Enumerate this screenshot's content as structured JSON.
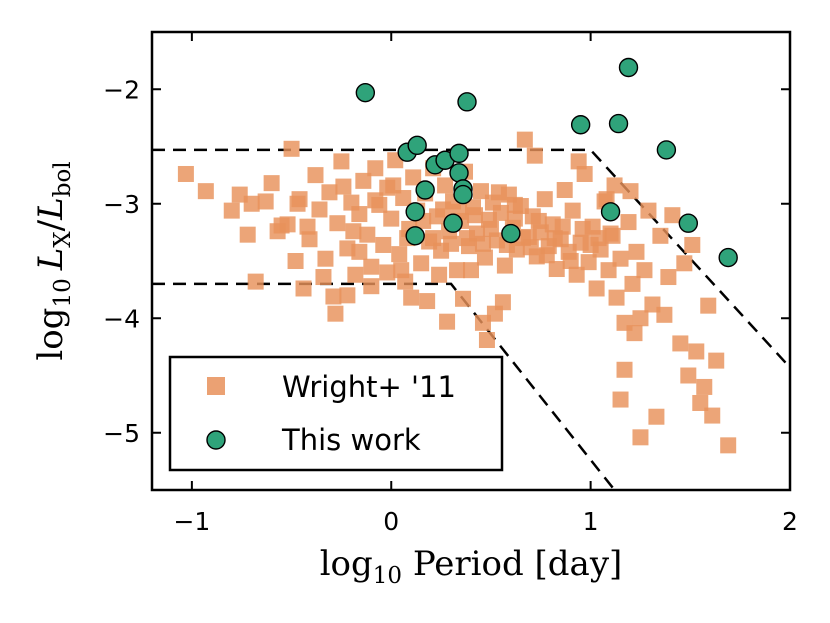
{
  "chart_data": {
    "type": "scatter",
    "xlabel": "log10 Period [day]",
    "ylabel": "log10 LX/Lbol",
    "xlabel_parts": {
      "log": "log",
      "sub": "10",
      "rest": " Period [day]"
    },
    "ylabel_parts": {
      "log": "log",
      "sub": "10",
      "L1": "L",
      "sub1": "X",
      "slash": "/",
      "L2": "L",
      "sub2": "bol"
    },
    "xlim": [
      -1.2,
      2.0
    ],
    "ylim": [
      -5.5,
      -1.5
    ],
    "xticks": [
      -1,
      0,
      1,
      2
    ],
    "xtick_labels": [
      "−1",
      "0",
      "1",
      "2"
    ],
    "yticks": [
      -5,
      -4,
      -3,
      -2
    ],
    "ytick_labels": [
      "−5",
      "−4",
      "−3",
      "−2"
    ],
    "legend": {
      "position": "lower-left",
      "entries": [
        "Wright+ '11",
        "This work"
      ]
    },
    "colors": {
      "wright": "#e8915a",
      "wright_edge": "#e07830",
      "this_work": "#2fa37a",
      "this_work_edge": "#000000",
      "guide": "#000000"
    },
    "guide_lines": [
      {
        "name": "upper-saturation-line",
        "x": [
          -1.2,
          1.0,
          2.0
        ],
        "y": [
          -2.53,
          -2.53,
          -4.43
        ]
      },
      {
        "name": "lower-saturation-line",
        "x": [
          -1.2,
          0.3,
          1.12
        ],
        "y": [
          -3.7,
          -3.7,
          -5.5
        ]
      }
    ],
    "series": [
      {
        "name": "This work",
        "marker": "circle",
        "points": [
          [
            -0.13,
            -2.03
          ],
          [
            0.08,
            -2.55
          ],
          [
            0.13,
            -2.49
          ],
          [
            0.17,
            -2.88
          ],
          [
            0.22,
            -2.66
          ],
          [
            0.27,
            -2.62
          ],
          [
            0.34,
            -2.56
          ],
          [
            0.34,
            -2.73
          ],
          [
            0.36,
            -2.87
          ],
          [
            0.36,
            -2.92
          ],
          [
            0.38,
            -2.11
          ],
          [
            0.12,
            -3.07
          ],
          [
            0.12,
            -3.28
          ],
          [
            0.31,
            -3.17
          ],
          [
            0.6,
            -3.26
          ],
          [
            0.95,
            -2.31
          ],
          [
            1.1,
            -3.07
          ],
          [
            1.14,
            -2.3
          ],
          [
            1.19,
            -1.81
          ],
          [
            1.38,
            -2.53
          ],
          [
            1.49,
            -3.17
          ],
          [
            1.69,
            -3.47
          ]
        ]
      },
      {
        "name": "Wright+ '11",
        "marker": "square",
        "points": [
          [
            -1.03,
            -2.74
          ],
          [
            -0.93,
            -2.89
          ],
          [
            -0.8,
            -3.06
          ],
          [
            -0.72,
            -3.27
          ],
          [
            -0.68,
            -3.68
          ],
          [
            -0.6,
            -2.82
          ],
          [
            -0.55,
            -3.19
          ],
          [
            -0.5,
            -2.52
          ],
          [
            -0.48,
            -3.5
          ],
          [
            -0.46,
            -2.96
          ],
          [
            -0.44,
            -3.74
          ],
          [
            -0.41,
            -3.31
          ],
          [
            -0.38,
            -2.75
          ],
          [
            -0.36,
            -3.05
          ],
          [
            -0.33,
            -3.48
          ],
          [
            -0.31,
            -2.9
          ],
          [
            -0.29,
            -3.81
          ],
          [
            -0.27,
            -3.17
          ],
          [
            -0.25,
            -2.63
          ],
          [
            -0.22,
            -3.39
          ],
          [
            -0.2,
            -2.99
          ],
          [
            -0.18,
            -3.62
          ],
          [
            -0.16,
            -3.09
          ],
          [
            -0.14,
            -2.8
          ],
          [
            -0.12,
            -3.27
          ],
          [
            -0.1,
            -3.55
          ],
          [
            -0.08,
            -2.69
          ],
          [
            -0.06,
            -3.01
          ],
          [
            -0.04,
            -3.36
          ],
          [
            -0.02,
            -2.86
          ],
          [
            0.0,
            -3.13
          ],
          [
            0.02,
            -2.62
          ],
          [
            0.04,
            -3.44
          ],
          [
            0.06,
            -2.95
          ],
          [
            0.07,
            -3.68
          ],
          [
            0.09,
            -3.22
          ],
          [
            0.11,
            -2.77
          ],
          [
            0.13,
            -3.06
          ],
          [
            0.15,
            -3.52
          ],
          [
            0.17,
            -2.91
          ],
          [
            0.19,
            -3.33
          ],
          [
            0.21,
            -2.69
          ],
          [
            0.23,
            -3.11
          ],
          [
            0.25,
            -3.41
          ],
          [
            0.27,
            -2.84
          ],
          [
            0.29,
            -3.24
          ],
          [
            0.31,
            -2.98
          ],
          [
            0.33,
            -3.58
          ],
          [
            0.35,
            -3.15
          ],
          [
            0.37,
            -2.72
          ],
          [
            0.39,
            -3.37
          ],
          [
            0.41,
            -3.03
          ],
          [
            0.43,
            -3.26
          ],
          [
            0.45,
            -2.89
          ],
          [
            0.47,
            -3.47
          ],
          [
            0.49,
            -3.14
          ],
          [
            0.51,
            -2.99
          ],
          [
            0.53,
            -3.32
          ],
          [
            0.55,
            -3.08
          ],
          [
            0.57,
            -3.54
          ],
          [
            0.59,
            -2.92
          ],
          [
            0.61,
            -3.21
          ],
          [
            0.63,
            -3.4
          ],
          [
            0.65,
            -3.02
          ],
          [
            0.67,
            -2.44
          ],
          [
            0.69,
            -3.29
          ],
          [
            0.71,
            -3.11
          ],
          [
            0.73,
            -3.46
          ],
          [
            0.75,
            -3.25
          ],
          [
            0.77,
            -2.96
          ],
          [
            0.79,
            -3.37
          ],
          [
            0.81,
            -3.18
          ],
          [
            0.83,
            -3.57
          ],
          [
            0.85,
            -3.31
          ],
          [
            0.87,
            -2.88
          ],
          [
            0.89,
            -3.42
          ],
          [
            0.91,
            -3.06
          ],
          [
            0.93,
            -3.62
          ],
          [
            0.95,
            -3.34
          ],
          [
            0.97,
            -2.74
          ],
          [
            0.99,
            -3.51
          ],
          [
            1.01,
            -3.2
          ],
          [
            1.03,
            -3.74
          ],
          [
            1.05,
            -3.4
          ],
          [
            1.07,
            -2.98
          ],
          [
            1.09,
            -3.58
          ],
          [
            1.11,
            -3.28
          ],
          [
            1.13,
            -3.82
          ],
          [
            1.15,
            -3.48
          ],
          [
            1.17,
            -4.04
          ],
          [
            1.19,
            -3.16
          ],
          [
            1.21,
            -3.7
          ],
          [
            1.23,
            -3.42
          ],
          [
            1.25,
            -4.0
          ],
          [
            1.27,
            -3.58
          ],
          [
            1.29,
            -3.06
          ],
          [
            1.31,
            -3.88
          ],
          [
            1.33,
            -4.86
          ],
          [
            1.35,
            -3.28
          ],
          [
            1.37,
            -3.97
          ],
          [
            1.39,
            -3.64
          ],
          [
            1.41,
            -3.1
          ],
          [
            1.45,
            -4.22
          ],
          [
            1.47,
            -3.52
          ],
          [
            1.49,
            -4.5
          ],
          [
            1.51,
            -3.36
          ],
          [
            1.53,
            -4.29
          ],
          [
            1.55,
            -4.74
          ],
          [
            1.57,
            -4.6
          ],
          [
            1.59,
            -3.89
          ],
          [
            1.61,
            -4.85
          ],
          [
            1.63,
            -4.37
          ],
          [
            1.69,
            -5.11
          ],
          [
            1.25,
            -5.04
          ],
          [
            1.15,
            -4.71
          ],
          [
            1.17,
            -4.45
          ],
          [
            1.22,
            -4.13
          ],
          [
            1.2,
            -2.89
          ],
          [
            1.12,
            -2.84
          ],
          [
            1.08,
            -2.96
          ],
          [
            0.94,
            -2.63
          ],
          [
            0.72,
            -2.58
          ],
          [
            0.62,
            -3.01
          ],
          [
            0.56,
            -3.86
          ],
          [
            0.52,
            -3.96
          ],
          [
            0.48,
            -4.19
          ],
          [
            0.46,
            -4.04
          ],
          [
            0.4,
            -3.58
          ],
          [
            0.36,
            -3.83
          ],
          [
            0.28,
            -4.03
          ],
          [
            0.24,
            -3.62
          ],
          [
            0.18,
            -3.85
          ],
          [
            0.1,
            -3.82
          ],
          [
            0.05,
            -3.58
          ],
          [
            -0.02,
            -3.6
          ],
          [
            -0.1,
            -3.72
          ],
          [
            -0.16,
            -3.42
          ],
          [
            -0.22,
            -3.8
          ],
          [
            -0.28,
            -3.96
          ],
          [
            -0.34,
            -3.64
          ],
          [
            -0.39,
            -4.44
          ],
          [
            -0.42,
            -3.2
          ],
          [
            -0.47,
            -3.0
          ],
          [
            -0.52,
            -3.18
          ],
          [
            -0.57,
            -3.24
          ],
          [
            -0.63,
            -2.98
          ],
          [
            -0.7,
            -3.0
          ],
          [
            -0.76,
            -2.92
          ],
          [
            -0.24,
            -2.85
          ],
          [
            -0.19,
            -3.24
          ],
          [
            -0.08,
            -2.97
          ],
          [
            0.01,
            -2.84
          ],
          [
            0.08,
            -3.3
          ],
          [
            0.16,
            -3.15
          ],
          [
            0.21,
            -3.3
          ],
          [
            0.26,
            -3.05
          ],
          [
            0.3,
            -3.35
          ],
          [
            0.34,
            -3.07
          ],
          [
            0.38,
            -3.3
          ],
          [
            0.42,
            -3.1
          ],
          [
            0.46,
            -3.35
          ],
          [
            0.5,
            -3.22
          ],
          [
            0.54,
            -2.9
          ],
          [
            0.58,
            -3.36
          ],
          [
            0.62,
            -3.13
          ],
          [
            0.66,
            -3.3
          ],
          [
            0.7,
            -3.38
          ],
          [
            0.74,
            -3.15
          ],
          [
            0.78,
            -3.45
          ],
          [
            0.82,
            -3.3
          ],
          [
            0.86,
            -3.2
          ],
          [
            0.9,
            -3.5
          ],
          [
            0.96,
            -3.22
          ],
          [
            1.0,
            -3.36
          ],
          [
            1.04,
            -3.3
          ],
          [
            1.1,
            -3.26
          ]
        ]
      }
    ]
  }
}
